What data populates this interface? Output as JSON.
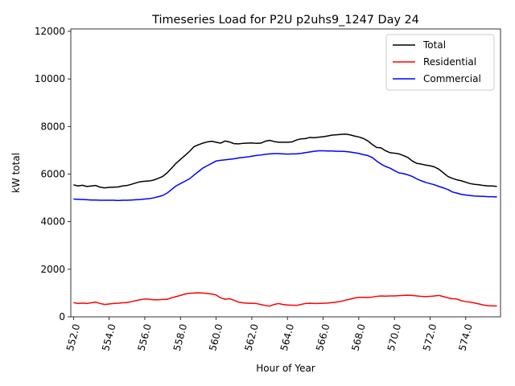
{
  "chart_data": {
    "type": "line",
    "title": "Timeseries Load for P2U p2uhs9_1247  Day 24",
    "xlabel": "Hour of Year",
    "ylabel": "kW total",
    "xlim": [
      551.85,
      575.95
    ],
    "ylim": [
      0,
      12100
    ],
    "x_ticks": [
      552.0,
      554.0,
      556.0,
      558.0,
      560.0,
      562.0,
      564.0,
      566.0,
      568.0,
      570.0,
      572.0,
      574.0
    ],
    "x_tick_labels": [
      "552.0",
      "554.0",
      "556.0",
      "558.0",
      "560.0",
      "562.0",
      "564.0",
      "566.0",
      "568.0",
      "570.0",
      "572.0",
      "574.0"
    ],
    "y_ticks": [
      0,
      2000,
      4000,
      6000,
      8000,
      10000,
      12000
    ],
    "y_tick_labels": [
      "0",
      "2000",
      "4000",
      "6000",
      "8000",
      "10000",
      "12000"
    ],
    "legend_position": "top-right",
    "x": [
      552.0,
      552.25,
      552.5,
      552.75,
      553.0,
      553.25,
      553.5,
      553.75,
      554.0,
      554.25,
      554.5,
      554.75,
      555.0,
      555.25,
      555.5,
      555.75,
      556.0,
      556.25,
      556.5,
      556.75,
      557.0,
      557.25,
      557.5,
      557.75,
      558.0,
      558.25,
      558.5,
      558.75,
      559.0,
      559.25,
      559.5,
      559.75,
      560.0,
      560.25,
      560.5,
      560.75,
      561.0,
      561.25,
      561.5,
      561.75,
      562.0,
      562.25,
      562.5,
      562.75,
      563.0,
      563.25,
      563.5,
      563.75,
      564.0,
      564.25,
      564.5,
      564.75,
      565.0,
      565.25,
      565.5,
      565.75,
      566.0,
      566.25,
      566.5,
      566.75,
      567.0,
      567.25,
      567.5,
      567.75,
      568.0,
      568.25,
      568.5,
      568.75,
      569.0,
      569.25,
      569.5,
      569.75,
      570.0,
      570.25,
      570.5,
      570.75,
      571.0,
      571.25,
      571.5,
      571.75,
      572.0,
      572.25,
      572.5,
      572.75,
      573.0,
      573.25,
      573.5,
      573.75,
      574.0,
      574.25,
      574.5,
      574.75,
      575.0,
      575.25,
      575.5,
      575.75
    ],
    "series": [
      {
        "name": "Total",
        "color": "#000000",
        "values": [
          5550,
          5500,
          5530,
          5480,
          5500,
          5520,
          5450,
          5420,
          5440,
          5450,
          5460,
          5500,
          5520,
          5570,
          5630,
          5680,
          5700,
          5710,
          5750,
          5820,
          5900,
          6050,
          6250,
          6450,
          6620,
          6780,
          6950,
          7150,
          7230,
          7300,
          7350,
          7380,
          7340,
          7300,
          7390,
          7350,
          7280,
          7270,
          7290,
          7300,
          7310,
          7290,
          7300,
          7380,
          7420,
          7370,
          7340,
          7340,
          7340,
          7350,
          7430,
          7480,
          7490,
          7540,
          7530,
          7550,
          7570,
          7600,
          7640,
          7650,
          7670,
          7680,
          7650,
          7600,
          7560,
          7500,
          7400,
          7250,
          7120,
          7100,
          6980,
          6900,
          6880,
          6850,
          6780,
          6700,
          6550,
          6450,
          6420,
          6380,
          6350,
          6300,
          6200,
          6050,
          5900,
          5820,
          5760,
          5720,
          5660,
          5600,
          5570,
          5550,
          5520,
          5500,
          5500,
          5480
        ]
      },
      {
        "name": "Residential",
        "color": "#ff0000",
        "values": [
          600,
          560,
          580,
          560,
          590,
          620,
          560,
          520,
          540,
          560,
          570,
          590,
          600,
          640,
          680,
          720,
          750,
          740,
          720,
          720,
          730,
          740,
          800,
          850,
          900,
          960,
          990,
          1000,
          1010,
          1000,
          980,
          960,
          920,
          800,
          740,
          760,
          700,
          620,
          590,
          570,
          570,
          560,
          520,
          480,
          450,
          520,
          560,
          520,
          500,
          490,
          480,
          520,
          560,
          570,
          560,
          560,
          570,
          580,
          600,
          620,
          650,
          700,
          740,
          790,
          820,
          820,
          810,
          830,
          860,
          880,
          870,
          880,
          880,
          890,
          900,
          910,
          900,
          880,
          860,
          850,
          860,
          880,
          900,
          850,
          800,
          760,
          750,
          680,
          640,
          620,
          580,
          540,
          500,
          470,
          460,
          460
        ]
      },
      {
        "name": "Commercial",
        "color": "#0000ff",
        "values": [
          4950,
          4940,
          4930,
          4920,
          4910,
          4910,
          4900,
          4900,
          4900,
          4900,
          4890,
          4900,
          4900,
          4910,
          4920,
          4930,
          4950,
          4970,
          5000,
          5050,
          5100,
          5200,
          5350,
          5500,
          5600,
          5700,
          5800,
          5950,
          6100,
          6250,
          6350,
          6450,
          6550,
          6580,
          6600,
          6620,
          6640,
          6680,
          6700,
          6720,
          6750,
          6780,
          6800,
          6830,
          6850,
          6860,
          6860,
          6850,
          6840,
          6850,
          6850,
          6870,
          6900,
          6930,
          6960,
          6980,
          6980,
          6970,
          6970,
          6960,
          6960,
          6950,
          6930,
          6900,
          6870,
          6820,
          6780,
          6700,
          6550,
          6420,
          6320,
          6250,
          6150,
          6050,
          6020,
          5970,
          5900,
          5800,
          5720,
          5650,
          5600,
          5550,
          5480,
          5420,
          5350,
          5250,
          5200,
          5150,
          5120,
          5100,
          5080,
          5070,
          5060,
          5050,
          5050,
          5040
        ]
      }
    ]
  }
}
